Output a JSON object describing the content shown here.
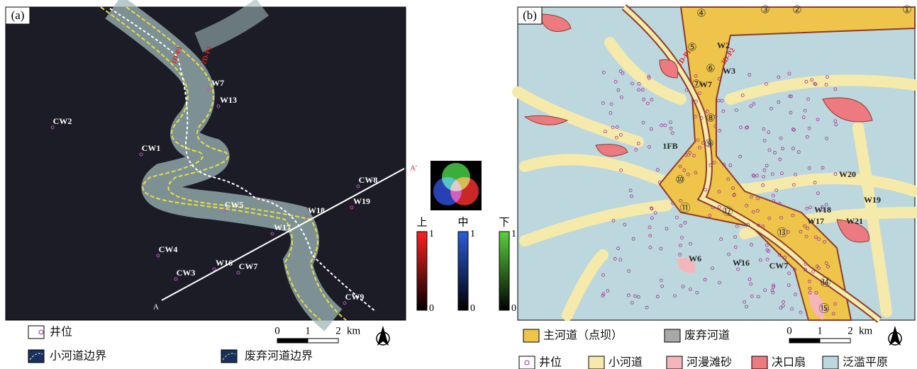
{
  "panel_a": {
    "label": "(a)",
    "wells": [
      "CW2",
      "CW1",
      "CW8",
      "W19",
      "CW5",
      "W17",
      "W18",
      "CW4",
      "CW3",
      "W16",
      "CW7",
      "CW9",
      "W7",
      "W13"
    ],
    "profiles": [
      "1D-P1",
      "2D-P1"
    ],
    "section": [
      "A",
      "A'"
    ]
  },
  "colorbars": [
    {
      "label": "上",
      "max": 1,
      "min": 0
    },
    {
      "label": "中",
      "max": 1,
      "min": 0
    },
    {
      "label": "下",
      "max": 1,
      "min": 0
    }
  ],
  "legend_a": [
    "井位",
    "小河道边界",
    "废弃河道边界"
  ],
  "scale_a": {
    "ticks": [
      0,
      1,
      2
    ],
    "unit": "km"
  },
  "panel_b": {
    "label": "(b)",
    "bars": [
      "①",
      "②",
      "③",
      "④",
      "⑤",
      "⑥",
      "⑦",
      "⑧",
      "⑨",
      "⑩",
      "⑪",
      "⑫",
      "⑬",
      "⑭",
      "⑮"
    ],
    "wells": [
      "W2",
      "W3",
      "W7",
      "1FB",
      "W20",
      "W19",
      "W18",
      "W17",
      "W21",
      "W16",
      "CW7",
      "W6"
    ],
    "profiles": [
      "1D-P1",
      "2D-P2"
    ]
  },
  "legend_b": [
    "主河道（点坝）",
    "废弃河道",
    "井位",
    "小河道",
    "河漫滩砂",
    "决口扇",
    "泛滥平原"
  ],
  "scale_b": {
    "ticks": [
      0,
      1,
      2
    ],
    "unit": "km"
  }
}
